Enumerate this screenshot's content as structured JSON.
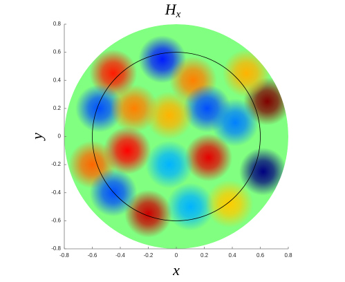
{
  "chart_data": {
    "type": "field",
    "title": "H",
    "title_subscript": "x",
    "xlabel": "x",
    "ylabel": "y",
    "xlim": [
      -0.8,
      0.8
    ],
    "ylim": [
      -0.8,
      0.8
    ],
    "xticks": [
      -0.8,
      -0.6,
      -0.4,
      -0.2,
      0,
      0.2,
      0.4,
      0.6,
      0.8
    ],
    "yticks": [
      -0.8,
      -0.6,
      -0.4,
      -0.2,
      0,
      0.2,
      0.4,
      0.6,
      0.8
    ],
    "colormap": "jet",
    "clim": [
      -1,
      1
    ],
    "domain_radius": 0.8,
    "circle_radius": 0.6,
    "points": [
      {
        "x": 0.65,
        "y": 0.25,
        "value": 1
      },
      {
        "x": 0.62,
        "y": -0.25,
        "value": -1
      },
      {
        "x": -0.45,
        "y": 0.45,
        "value": 0.7
      },
      {
        "x": -0.1,
        "y": 0.55,
        "value": -0.7
      },
      {
        "x": 0.12,
        "y": 0.4,
        "value": 0.5
      },
      {
        "x": 0.22,
        "y": 0.2,
        "value": -0.6
      },
      {
        "x": 0.23,
        "y": -0.15,
        "value": 0.8
      },
      {
        "x": -0.55,
        "y": 0.2,
        "value": -0.6
      },
      {
        "x": -0.3,
        "y": 0.2,
        "value": 0.5
      },
      {
        "x": -0.35,
        "y": -0.1,
        "value": 0.75
      },
      {
        "x": -0.6,
        "y": -0.2,
        "value": 0.55
      },
      {
        "x": -0.05,
        "y": 0.15,
        "value": 0.4
      },
      {
        "x": 0.42,
        "y": 0.1,
        "value": -0.5
      },
      {
        "x": -0.05,
        "y": -0.2,
        "value": -0.4
      },
      {
        "x": -0.2,
        "y": -0.55,
        "value": 0.85
      },
      {
        "x": -0.45,
        "y": -0.4,
        "value": -0.6
      },
      {
        "x": 0.1,
        "y": -0.5,
        "value": -0.4
      },
      {
        "x": 0.38,
        "y": -0.48,
        "value": 0.35
      },
      {
        "x": 0.5,
        "y": 0.45,
        "value": 0.4
      }
    ]
  }
}
